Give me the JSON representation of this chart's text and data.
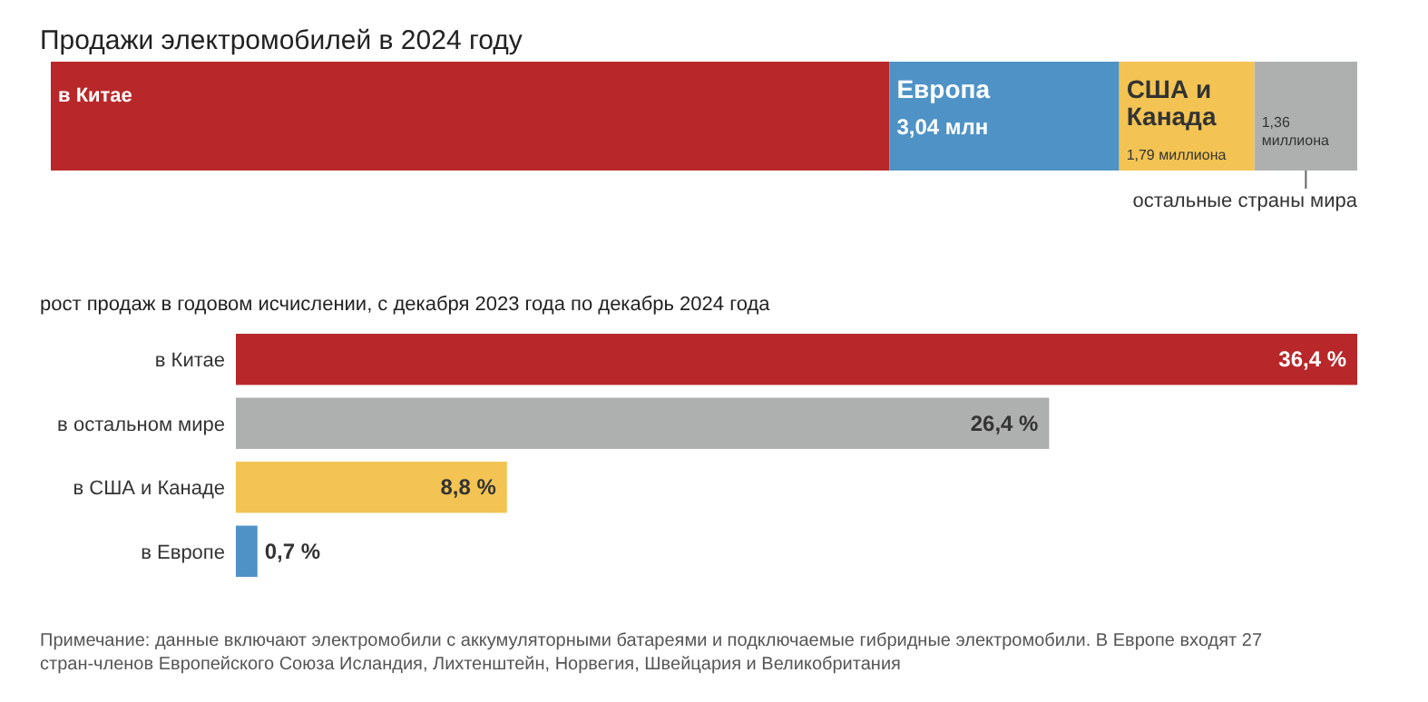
{
  "chart_data": [
    {
      "type": "bar",
      "title": "Продажи электромобилей в 2024 году",
      "orientation": "horizontal",
      "stacked": true,
      "categories": [
        null
      ],
      "series": [
        {
          "name": "в Китае",
          "color": "#b8282a",
          "values": [
            11.1
          ]
        },
        {
          "name": "Европа",
          "color": "#4f93c6",
          "values": [
            3.04
          ],
          "value_labels": [
            "3,04 млн"
          ]
        },
        {
          "name": "США и Канада",
          "color": "#f3c453",
          "values": [
            1.79
          ],
          "value_labels": [
            "1,79 миллиона"
          ]
        },
        {
          "name": "остальные страны мира",
          "color": "#aeb0b0",
          "values": [
            1.36
          ],
          "value_labels": [
            "1,36 миллиона"
          ]
        }
      ]
    },
    {
      "type": "bar",
      "title": "рост продаж в годовом исчислении, с декабря 2023 года по декабрь 2024 года",
      "orientation": "horizontal",
      "categories": [
        "в Китае",
        "в остальном мире",
        "в США и Канаде",
        "в Европе"
      ],
      "values": [
        36.4,
        26.4,
        8.8,
        0.7
      ],
      "colors": [
        "#b8282a",
        "#aeb0b0",
        "#f3c453",
        "#4f93c6"
      ],
      "value_labels": [
        "36,4 %",
        "26,4 %",
        "8,8 %",
        "0,7 %"
      ],
      "annotations": [
        "Примечание: данные включают электромобили с аккумуляторными батареями и подключаемые гибридные электромобили. В Европе входят 27 стран-членов Европейского Союза Исландия, Лихтенштейн, Норвегия, Швейцария и Великобритания"
      ]
    }
  ]
}
